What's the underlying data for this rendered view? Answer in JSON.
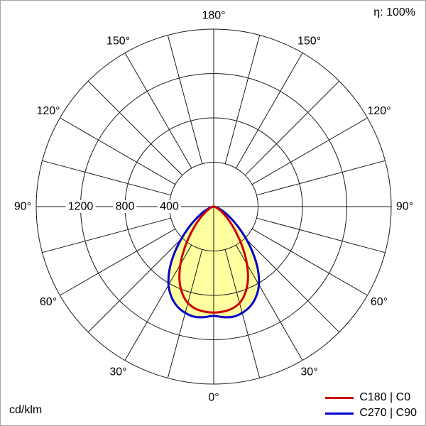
{
  "chart_data": {
    "type": "polar",
    "efficiency_label": "η: 100%",
    "unit_label": "cd/klm",
    "angle_labels_deg": [
      0,
      30,
      60,
      90,
      120,
      150,
      180
    ],
    "angle_label_suffix": "°",
    "angle_grid_step_deg": 15,
    "radial_ticks": [
      400,
      800,
      1200
    ],
    "radial_max": 1600,
    "grid_color": "#1a1a1a",
    "fill_color": "#ffffa0",
    "gamma_deg": [
      0,
      5,
      10,
      15,
      20,
      25,
      30,
      35,
      40,
      45,
      50,
      55,
      60,
      65,
      70,
      75,
      80,
      85,
      90
    ],
    "series": [
      {
        "name": "C180 | C0",
        "color": "#cc0000",
        "values_cd_per_klm": [
          955,
          950,
          935,
          900,
          830,
          730,
          600,
          460,
          330,
          230,
          155,
          100,
          65,
          40,
          24,
          13,
          6,
          2,
          0
        ]
      },
      {
        "name": "C270 | C90",
        "color": "#0000cc",
        "values_cd_per_klm": [
          985,
          1000,
          1008,
          992,
          958,
          900,
          815,
          695,
          555,
          415,
          295,
          200,
          132,
          84,
          50,
          27,
          13,
          5,
          0
        ]
      }
    ],
    "legend_position": "bottom-right"
  }
}
